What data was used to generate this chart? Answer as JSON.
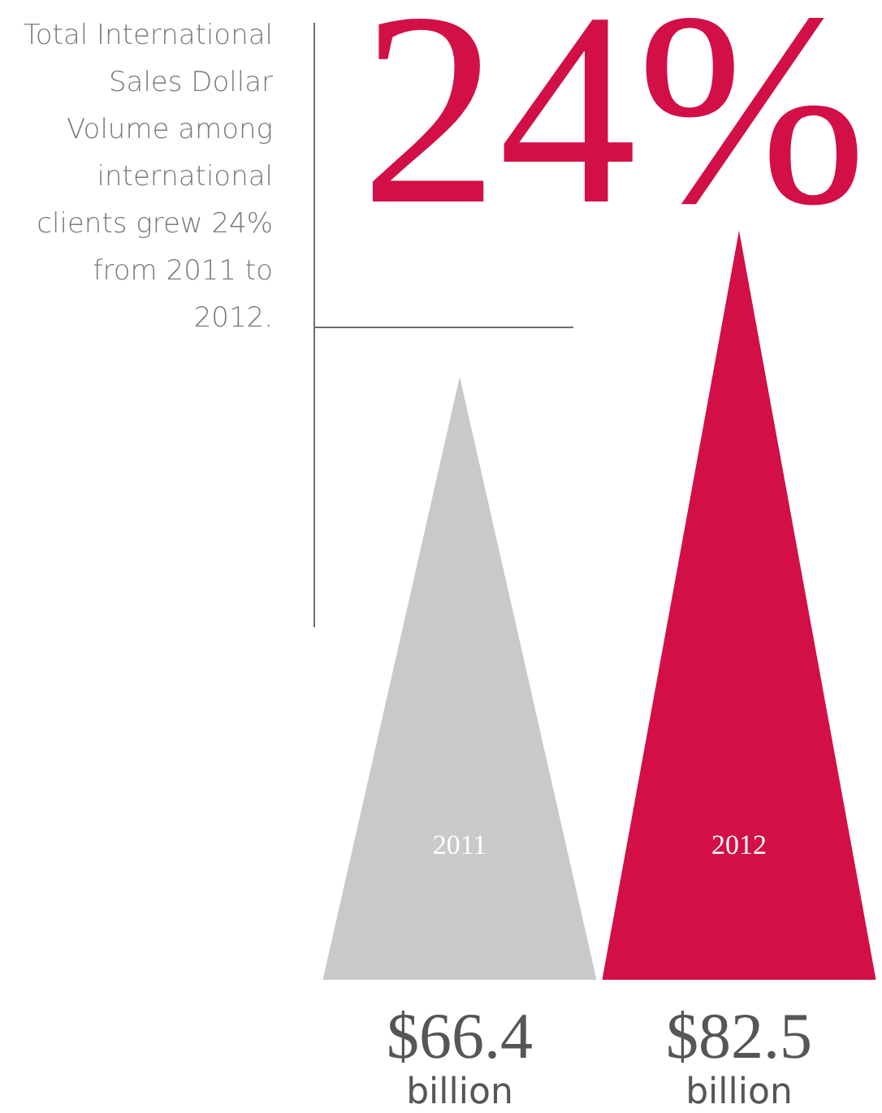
{
  "chart_data": {
    "type": "bar",
    "title": "Total International Sales Dollar Volume among international clients grew 24% from 2011 to 2012.",
    "categories": [
      "2011",
      "2012"
    ],
    "values": [
      66.4,
      82.5
    ],
    "colors": [
      "#c8c9cb",
      "#d20f46"
    ],
    "value_labels": [
      "$66.4 billion",
      "$82.5 billion"
    ],
    "annotations": [
      "24%"
    ],
    "legend": false
  }
}
